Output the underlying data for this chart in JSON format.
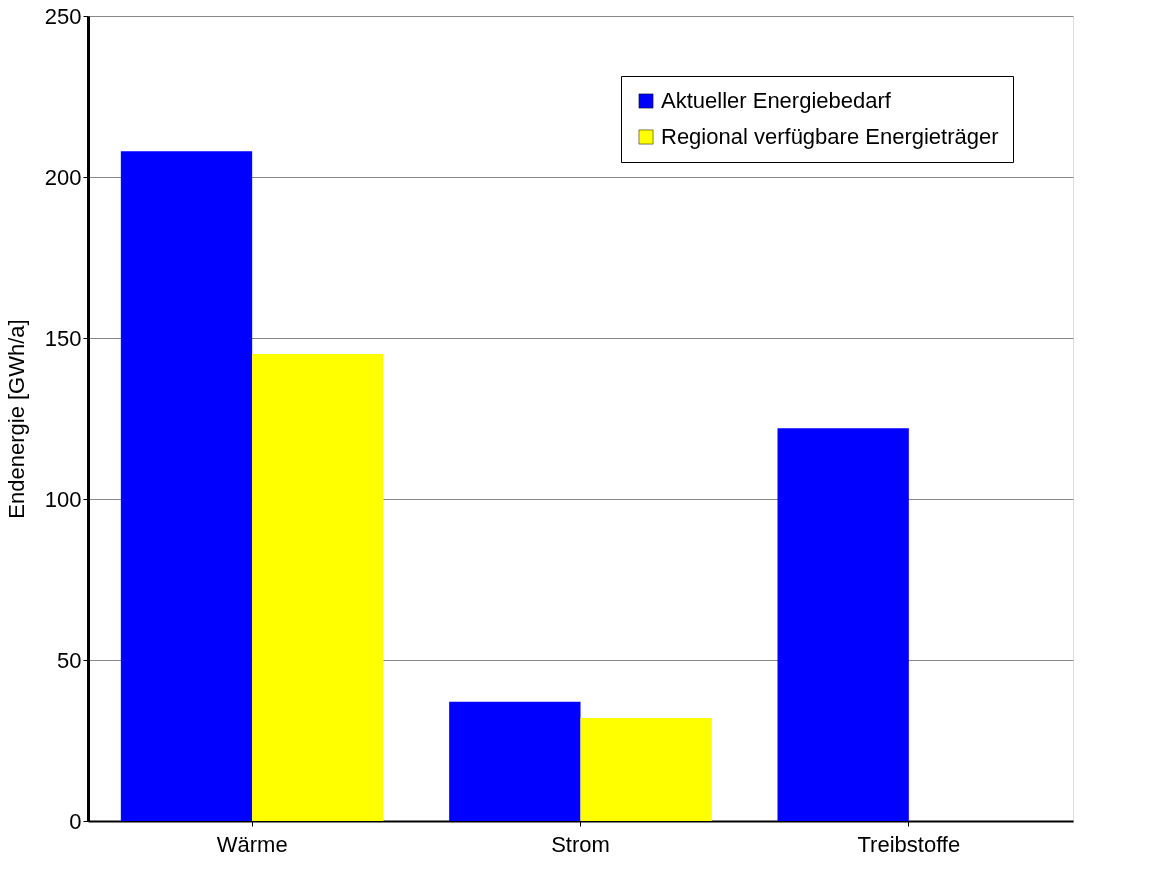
{
  "chart_data": {
    "type": "bar",
    "ylabel": "Endenergie [GWh/a]",
    "categories": [
      "Wärme",
      "Strom",
      "Treibstoffe"
    ],
    "series": [
      {
        "name": "Aktueller Energiebedarf",
        "color": "#0000ff",
        "values": [
          208,
          37,
          122
        ]
      },
      {
        "name": "Regional verfügbare Energieträger",
        "color": "#ffff00",
        "values": [
          145,
          32,
          null
        ]
      }
    ],
    "ylim": [
      0,
      250
    ],
    "yticks": [
      0,
      50,
      100,
      150,
      200,
      250
    ],
    "grid": "y",
    "legend": "top right"
  }
}
